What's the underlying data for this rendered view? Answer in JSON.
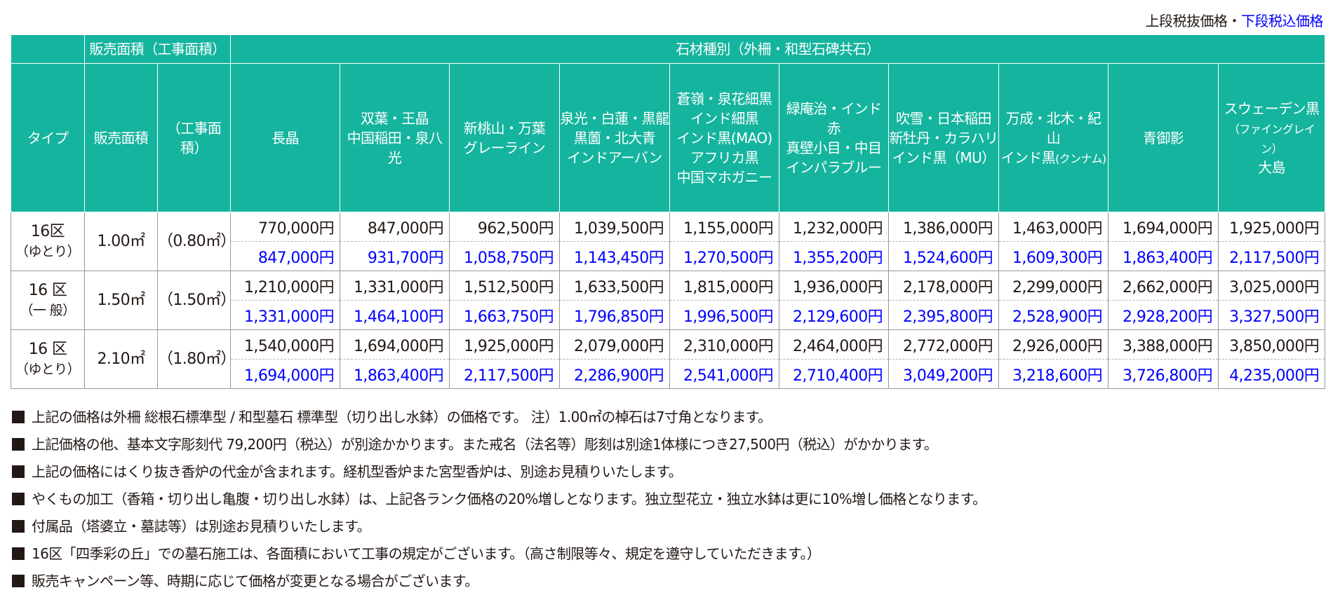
{
  "tax_note": {
    "pre": "上段税抜価格・",
    "post": "下段税込価格"
  },
  "header": {
    "area_group": "販売面積（工事面積）",
    "stone_group": "石材種別（外柵・和型石碑共石）",
    "type": "タイプ",
    "sale_area": "販売面積",
    "work_area": "（工事面積）",
    "stones": [
      {
        "lines": [
          "長晶"
        ]
      },
      {
        "lines": [
          "双葉・王晶",
          "中国稲田・泉八光"
        ]
      },
      {
        "lines": [
          "新桃山・万葉",
          "グレーライン"
        ]
      },
      {
        "lines": [
          "泉光・白蓮・黒龍",
          "黒薗・北大青",
          "インドアーバン"
        ]
      },
      {
        "lines": [
          "蒼嶺・泉花細黒",
          "インド細黒",
          "インド黒(MAO)",
          "アフリカ黒",
          "中国マホガニー"
        ]
      },
      {
        "lines": [
          "緑庵治・インド赤",
          "真壁小目・中目",
          "インパラブルー"
        ]
      },
      {
        "lines": [
          "吹雪・日本稲田",
          "新牡丹・カラハリ",
          "インド黒（MU）"
        ]
      },
      {
        "lines": [
          "万成・北木・紀山",
          "インド黒",
          "(クンナム)"
        ]
      },
      {
        "lines": [
          "青御影"
        ]
      },
      {
        "lines": [
          "スウェーデン黒",
          "（ファイングレイン）",
          "大島"
        ]
      }
    ]
  },
  "rows": [
    {
      "type": "16区",
      "sub": "（ゆとり）",
      "area": "1.00㎡",
      "work": "（0.80㎡）",
      "pre": [
        "770,000円",
        "847,000円",
        "962,500円",
        "1,039,500円",
        "1,155,000円",
        "1,232,000円",
        "1,386,000円",
        "1,463,000円",
        "1,694,000円",
        "1,925,000円"
      ],
      "tax": [
        "847,000円",
        "931,700円",
        "1,058,750円",
        "1,143,450円",
        "1,270,500円",
        "1,355,200円",
        "1,524,600円",
        "1,609,300円",
        "1,863,400円",
        "2,117,500円"
      ]
    },
    {
      "type": "16 区",
      "sub": "（一 般）",
      "area": "1.50㎡",
      "work": "（1.50㎡）",
      "pre": [
        "1,210,000円",
        "1,331,000円",
        "1,512,500円",
        "1,633,500円",
        "1,815,000円",
        "1,936,000円",
        "2,178,000円",
        "2,299,000円",
        "2,662,000円",
        "3,025,000円"
      ],
      "tax": [
        "1,331,000円",
        "1,464,100円",
        "1,663,750円",
        "1,796,850円",
        "1,996,500円",
        "2,129,600円",
        "2,395,800円",
        "2,528,900円",
        "2,928,200円",
        "3,327,500円"
      ]
    },
    {
      "type": "16 区",
      "sub": "（ゆとり）",
      "area": "2.10㎡",
      "work": "（1.80㎡）",
      "pre": [
        "1,540,000円",
        "1,694,000円",
        "1,925,000円",
        "2,079,000円",
        "2,310,000円",
        "2,464,000円",
        "2,772,000円",
        "2,926,000円",
        "3,388,000円",
        "3,850,000円"
      ],
      "tax": [
        "1,694,000円",
        "1,863,400円",
        "2,117,500円",
        "2,286,900円",
        "2,541,000円",
        "2,710,400円",
        "3,049,200円",
        "3,218,600円",
        "3,726,800円",
        "4,235,000円"
      ]
    }
  ],
  "notes": [
    "上記の価格は外柵 総根石標準型 / 和型墓石 標準型（切り出し水鉢）の価格です。 注）1.00㎡の棹石は7寸角となります。",
    "上記価格の他、基本文字彫刻代 79,200円（税込）が別途かかります。また戒名（法名等）彫刻は別途1体様につき27,500円（税込）がかかります。",
    "上記の価格にはくり抜き香炉の代金が含まれます。経机型香炉また宮型香炉は、別途お見積りいたします。",
    "やくもの加工（香箱・切り出し亀腹・切り出し水鉢）は、上記各ランク価格の20%増しとなります。独立型花立・独立水鉢は更に10%増し価格となります。",
    "付属品（塔婆立・墓誌等）は別途お見積りいたします。",
    "16区「四季彩の丘」での墓石施工は、各面積において工事の規定がございます。（高さ制限等々、規定を遵守していただきます。）",
    "販売キャンペーン等、時期に応じて価格が変更となる場合がございます。"
  ],
  "colors": {
    "header_bg": "#15b49e",
    "tax_text": "#0000ff"
  }
}
